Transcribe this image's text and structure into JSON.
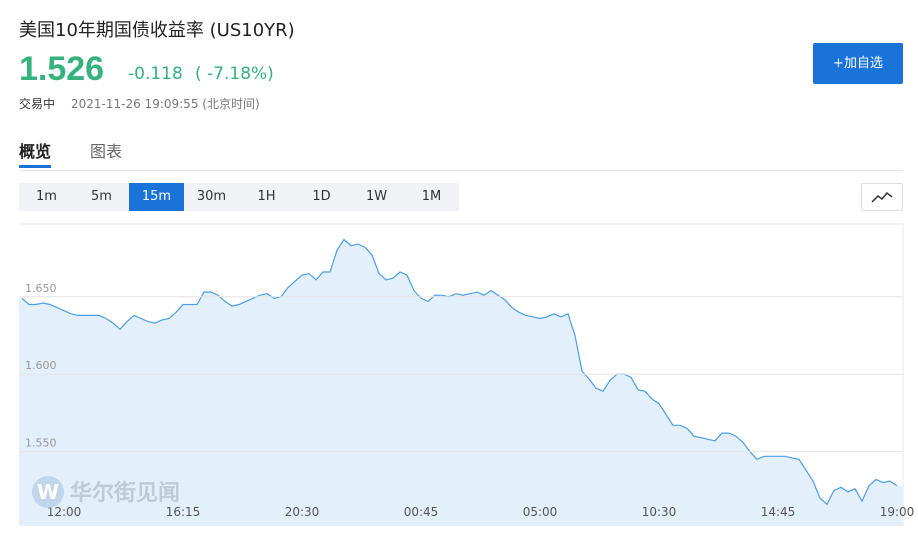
{
  "header": {
    "title": "美国10年期国债收益率 (US10YR)",
    "price": "1.526",
    "change": "-0.118",
    "change_pct": "( -7.18%)",
    "status": "交易中",
    "timestamp": "2021-11-26 19:09:55 (北京时间)",
    "button": "+加自选"
  },
  "tabs": {
    "items": [
      "概览",
      "图表"
    ],
    "active": 0
  },
  "intervals": {
    "items": [
      "1m",
      "5m",
      "15m",
      "30m",
      "1H",
      "1D",
      "1W",
      "1M"
    ],
    "active": 2
  },
  "watermark": {
    "logo": "W",
    "text": "华尔街见闻"
  },
  "chart_data": {
    "type": "area",
    "color": "#4a9ee8",
    "fill": "#e3f0fc",
    "grid": true,
    "ylim": [
      1.502,
      1.697
    ],
    "yticks": [
      {
        "value": 1.55,
        "label": "1.550"
      },
      {
        "value": 1.6,
        "label": "1.600"
      },
      {
        "value": 1.65,
        "label": "1.650"
      }
    ],
    "categories": [
      null,
      null,
      null,
      null,
      null,
      null,
      "12:00",
      null,
      null,
      null,
      null,
      null,
      null,
      null,
      null,
      null,
      null,
      null,
      null,
      null,
      null,
      null,
      null,
      "16:15",
      null,
      null,
      null,
      null,
      null,
      null,
      null,
      null,
      null,
      null,
      null,
      null,
      null,
      null,
      null,
      null,
      "20:30",
      null,
      null,
      null,
      null,
      null,
      null,
      null,
      null,
      null,
      null,
      null,
      null,
      null,
      null,
      null,
      null,
      "00:45",
      null,
      null,
      null,
      null,
      null,
      null,
      null,
      null,
      null,
      null,
      null,
      null,
      null,
      null,
      null,
      null,
      "05:00",
      null,
      null,
      null,
      null,
      null,
      null,
      null,
      null,
      null,
      null,
      null,
      null,
      null,
      null,
      null,
      null,
      "10:30",
      null,
      null,
      null,
      null,
      null,
      null,
      null,
      null,
      null,
      null,
      null,
      null,
      null,
      null,
      null,
      null,
      "14:45",
      null,
      null,
      null,
      null,
      null,
      null,
      null,
      null,
      null,
      null,
      null,
      null,
      null,
      null,
      null,
      null,
      "19:00"
    ],
    "values": [
      1.649,
      1.645,
      1.645,
      1.646,
      1.645,
      1.643,
      1.641,
      1.639,
      1.638,
      1.638,
      1.638,
      1.638,
      1.636,
      1.633,
      1.629,
      1.634,
      1.638,
      1.636,
      1.634,
      1.633,
      1.635,
      1.636,
      1.64,
      1.645,
      1.645,
      1.645,
      1.653,
      1.653,
      1.651,
      1.647,
      1.644,
      1.645,
      1.647,
      1.649,
      1.651,
      1.652,
      1.649,
      1.65,
      1.656,
      1.66,
      1.664,
      1.665,
      1.661,
      1.666,
      1.666,
      1.68,
      1.687,
      1.683,
      1.684,
      1.682,
      1.677,
      1.665,
      1.661,
      1.662,
      1.666,
      1.664,
      1.654,
      1.649,
      1.647,
      1.651,
      1.651,
      1.65,
      1.652,
      1.651,
      1.652,
      1.653,
      1.651,
      1.654,
      1.651,
      1.648,
      1.643,
      1.64,
      1.638,
      1.637,
      1.636,
      1.637,
      1.639,
      1.637,
      1.639,
      1.625,
      1.602,
      1.597,
      1.591,
      1.589,
      1.596,
      1.6,
      1.6,
      1.598,
      1.59,
      1.589,
      1.584,
      1.581,
      1.574,
      1.567,
      1.567,
      1.565,
      1.56,
      1.559,
      1.558,
      1.557,
      1.562,
      1.562,
      1.56,
      1.556,
      1.55,
      1.545,
      1.547,
      1.547,
      1.547,
      1.547,
      1.546,
      1.545,
      1.538,
      1.531,
      1.52,
      1.516,
      1.525,
      1.527,
      1.524,
      1.526,
      1.518,
      1.528,
      1.532,
      1.53,
      1.531,
      1.528
    ]
  }
}
